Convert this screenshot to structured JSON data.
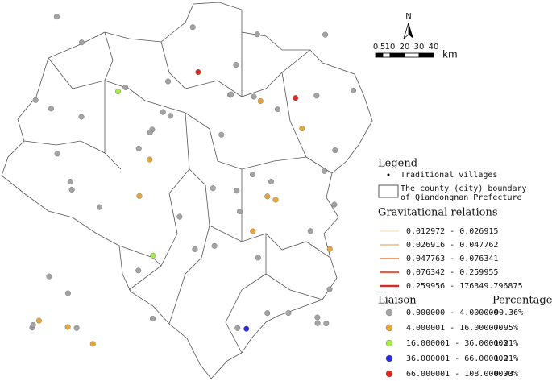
{
  "north": "N",
  "scale_bar": {
    "labels": [
      "0",
      "5",
      "10",
      "20",
      "30",
      "40"
    ],
    "unit": "km"
  },
  "legend": {
    "title": "Legend",
    "items": [
      {
        "label": [
          "Traditional villages"
        ]
      },
      {
        "label": [
          "The county (city) boundary",
          "of Qiandongnan Prefecture"
        ]
      }
    ]
  },
  "gravitational_relations": {
    "title": "Gravitational relations",
    "classes": [
      {
        "range": "0.012972 - 0.026915",
        "color": "#f6dcaa"
      },
      {
        "range": "0.026916 - 0.047762",
        "color": "#f0b878"
      },
      {
        "range": "0.047763 - 0.076341",
        "color": "#e9925e"
      },
      {
        "range": "0.076342 - 0.259955",
        "color": "#df6048"
      },
      {
        "range": "0.259956 - 176349.796875",
        "color": "#d42a2a"
      }
    ]
  },
  "liaison": {
    "title": "Liaison",
    "percentage_header": "Percentage",
    "classes": [
      {
        "range": "0.000000 - 4.000000",
        "percentage": "90.36%",
        "color": "#a3a3a3"
      },
      {
        "range": "4.000001 - 16.000000",
        "percentage": "7.95%",
        "color": "#e6a83a"
      },
      {
        "range": "16.000001 - 36.000000",
        "percentage": "1.21%",
        "color": "#a8ec48"
      },
      {
        "range": "36.000001 - 66.000000",
        "percentage": "1.21%",
        "color": "#2a2ae0"
      },
      {
        "range": "66.000001 - 108.000000",
        "percentage": "0.73%",
        "color": "#e02a20"
      }
    ]
  }
}
